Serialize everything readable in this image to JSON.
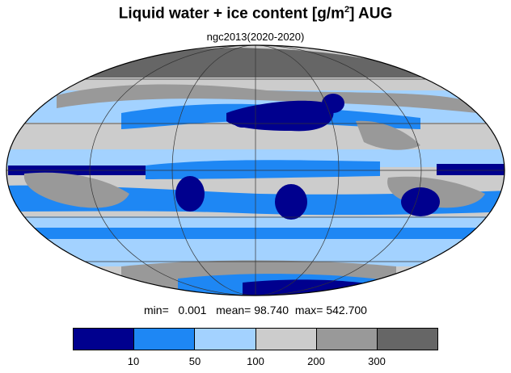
{
  "title": "Liquid water + ice content [g/m",
  "title_sup": "2",
  "title_tail": "] AUG",
  "subtitle": "ngc2013(2020-2020)",
  "stats": {
    "min_label": "min=",
    "min_value": "0.001",
    "mean_label": "mean=",
    "mean_value": "98.740",
    "max_label": "max=",
    "max_value": "542.700"
  },
  "legend": {
    "colors": [
      "#00008e",
      "#1e87f4",
      "#a3d2ff",
      "#cccccc",
      "#999999",
      "#666666"
    ],
    "ticks": [
      "10",
      "50",
      "100",
      "200",
      "300"
    ]
  }
}
